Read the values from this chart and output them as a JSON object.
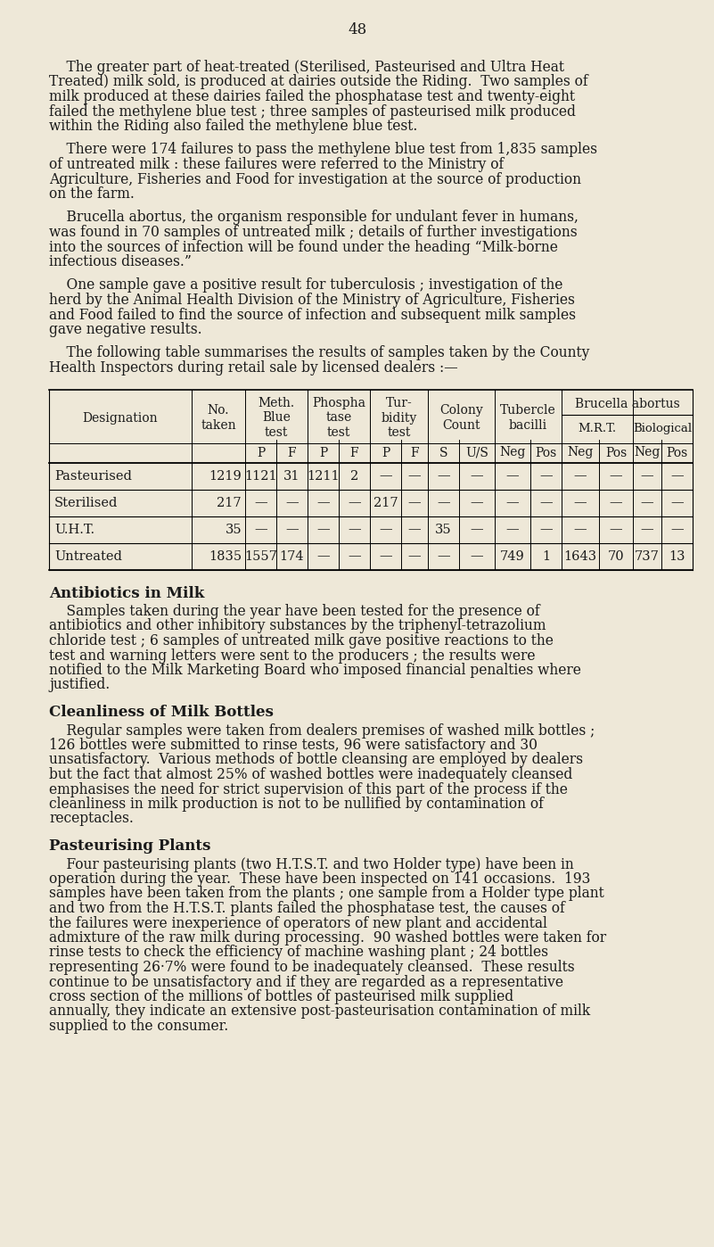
{
  "background_color": "#eee8d8",
  "page_number": "48",
  "text_color": "#1a1a1a",
  "font_family": "serif",
  "para1": "The greater part of heat-treated (Sterilised, Pasteurised and Ultra Heat Treated) milk sold, is produced at dairies outside the Riding.  Two samples of milk produced at these dairies failed the phosphatase test and twenty-eight failed the methylene blue test ; three samples of pasteurised milk produced within the Riding also failed the methylene blue test.",
  "para2": "There were 174 failures to pass the methylene blue test from 1,835 samples of untreated milk : these failures were referred to the Ministry of Agriculture, Fisheries and Food for investigation at the source of production on the farm.",
  "para3": "Brucella abortus, the organism responsible for undulant fever in humans, was found in 70 samples of untreated milk ; details of further investigations into the sources of infection will be found under the heading “Milk-borne infectious diseases.”",
  "para4": "One sample gave a positive result for tuberculosis ; investigation of the herd by the Animal Health Division of the Ministry of Agriculture, Fisheries and Food failed to find the source of infection and subsequent milk samples gave negative results.",
  "para5": "The following table summarises the results of samples taken by the County Health Inspectors during retail sale by licensed dealers :—",
  "table_rows": [
    [
      "Pasteurised",
      "1219",
      "1121",
      "31",
      "1211",
      "2",
      "—",
      "—",
      "—",
      "—",
      "—",
      "—",
      "—",
      "—",
      "—",
      "—"
    ],
    [
      "Sterilised",
      "217",
      "—",
      "—",
      "—",
      "—",
      "217",
      "—",
      "—",
      "—",
      "—",
      "—",
      "—",
      "—",
      "—",
      "—"
    ],
    [
      "U.H.T.",
      "35",
      "—",
      "—",
      "—",
      "—",
      "—",
      "—",
      "35",
      "—",
      "—",
      "—",
      "—",
      "—",
      "—",
      "—"
    ],
    [
      "Untreated",
      "1835",
      "1557",
      "174",
      "—",
      "—",
      "—",
      "—",
      "—",
      "—",
      "749",
      "1",
      "1643",
      "70",
      "737",
      "13"
    ]
  ],
  "sec1_heading": "Antibiotics in Milk",
  "sec1_text": "Samples taken during the year have been tested for the presence of antibiotics and other inhibitory substances by the triphenyl-tetrazolium chloride test ; 6 samples of untreated milk gave positive reactions to the test and warning letters were sent to the producers ; the results were notified to the Milk Marketing Board who imposed financial penalties where justified.",
  "sec2_heading": "Cleanliness of Milk Bottles",
  "sec2_text": "Regular samples were taken from dealers premises of washed milk bottles ; 126 bottles were submitted to rinse tests, 96 were satisfactory and 30 unsatisfactory.  Various methods of bottle cleansing are employed by dealers but the fact that almost 25% of washed bottles were inadequately cleansed emphasises the need for strict supervision of this part of the process if the cleanliness in milk production is not to be nullified by contamination of receptacles.",
  "sec3_heading": "Pasteurising Plants",
  "sec3_text": "Four pasteurising plants (two H.T.S.T. and two Holder type) have been in operation during the year.  These have been inspected on 141 occasions.  193 samples have been taken from the plants ; one sample from a Holder type plant and two from the H.T.S.T. plants failed the phosphatase test, the causes of the failures were inexperience of operators of new plant and accidental admixture of the raw milk during processing.  90 washed bottles were taken for rinse tests to check the efficiency of machine washing plant ; 24 bottles representing 26·7% were found to be inadequately cleansed.  These results continue to be unsatisfactory and if they are regarded as a representative cross section of the millions of bottles of pasteurised milk supplied annually, they indicate an extensive post-pasteurisation contamination of milk supplied to the consumer."
}
